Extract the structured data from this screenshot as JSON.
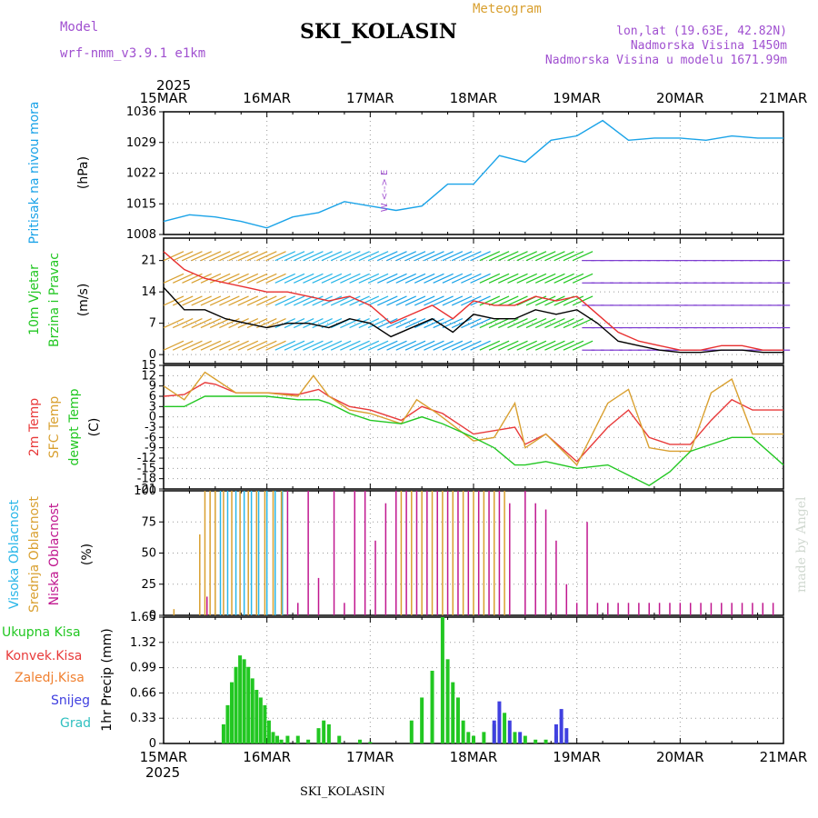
{
  "header": {
    "model_label": "Model",
    "model_value": "wrf-nmm_v3.9.1 e1km",
    "title": "SKI_KOLASIN",
    "chart_title": "Meteogram",
    "lonlat": "lon,lat (19.63E, 42.82N)",
    "elev": "Nadmorska Visina 1450m",
    "elev_model": "Nadmorska Visina u modelu 1671.99m",
    "year_top": "2025",
    "year_bottom": "2025",
    "footer_name": "SKI_KOLASIN",
    "credit": "made by Angel"
  },
  "colors": {
    "pressure": "#1aa3e8",
    "wind_speed": "#000000",
    "wind_gust": "#e83030",
    "t2m": "#e83a3a",
    "sfc": "#d9a030",
    "dew": "#22c722",
    "high_cloud": "#29b6e8",
    "mid_cloud": "#d9a030",
    "low_cloud": "#c0178f",
    "total_precip": "#22c722",
    "conv_precip": "#e83a3a",
    "frz_precip": "#f08030",
    "snow": "#4040e0",
    "grad": "#30c0c0",
    "label_purple": "#a050d0",
    "credit": "#d0d8d0"
  },
  "time_axis": {
    "labels": [
      "15MAR",
      "16MAR",
      "17MAR",
      "18MAR",
      "19MAR",
      "20MAR",
      "21MAR"
    ]
  },
  "chart_data": [
    {
      "type": "line",
      "panel": "pressure",
      "ylabel": [
        "Pritisak na nivou mora",
        "(hPa)"
      ],
      "yticks": [
        1008,
        1015,
        1022,
        1029,
        1036
      ],
      "ylim": [
        1008,
        1036
      ],
      "series": [
        {
          "x": [
            0,
            0.25,
            0.5,
            0.75,
            1.0,
            1.25,
            1.5,
            1.75,
            2.0,
            2.25,
            2.5,
            2.75,
            3.0,
            3.25,
            3.5,
            3.75,
            4.0,
            4.25,
            4.5,
            4.75,
            5.0,
            5.25,
            5.5,
            5.75,
            6.0
          ],
          "values": [
            1011,
            1012.5,
            1012,
            1011,
            1009.5,
            1012,
            1013,
            1015.5,
            1014.5,
            1013.5,
            1014.5,
            1019.5,
            1019.5,
            1026,
            1024.5,
            1029.5,
            1030.5,
            1034,
            1029.5,
            1030,
            1030,
            1029.5,
            1030.5,
            1030,
            1030
          ]
        }
      ]
    },
    {
      "type": "line",
      "panel": "wind",
      "ylabel": [
        "10m Vjetar",
        "Brzina i Pravac",
        "(m/s)"
      ],
      "yticks": [
        0,
        7,
        14,
        21
      ],
      "ylim": [
        -2,
        26
      ],
      "series": [
        {
          "x": [
            0,
            0.2,
            0.4,
            0.6,
            0.8,
            1.0,
            1.2,
            1.4,
            1.6,
            1.8,
            2.0,
            2.2,
            2.4,
            2.6,
            2.8,
            3.0,
            3.2,
            3.4,
            3.6,
            3.8,
            4.0,
            4.2,
            4.4,
            4.6,
            4.8,
            5.0,
            5.2,
            5.4,
            5.6,
            5.8,
            6.0
          ],
          "values": [
            15,
            10,
            10,
            8,
            7,
            6,
            7,
            7,
            6,
            8,
            7,
            4,
            6,
            8,
            5,
            9,
            8,
            8,
            10,
            9,
            10,
            7,
            3,
            2,
            1,
            0.5,
            0.5,
            1,
            1,
            0.5,
            0.5
          ]
        },
        {
          "x": [
            0,
            0.2,
            0.4,
            0.6,
            0.8,
            1.0,
            1.2,
            1.4,
            1.6,
            1.8,
            2.0,
            2.2,
            2.4,
            2.6,
            2.8,
            3.0,
            3.2,
            3.4,
            3.6,
            3.8,
            4.0,
            4.2,
            4.4,
            4.6,
            4.8,
            5.0,
            5.2,
            5.4,
            5.6,
            5.8,
            6.0
          ],
          "values": [
            23,
            19,
            17,
            16,
            15,
            14,
            14,
            13,
            12,
            13,
            11,
            7,
            9,
            11,
            8,
            12,
            11,
            11,
            13,
            12,
            13,
            9,
            5,
            3,
            2,
            1,
            1,
            2,
            2,
            1,
            1
          ]
        }
      ]
    },
    {
      "type": "line",
      "panel": "temperature",
      "ylabel": [
        "2m Temp",
        "SFC Temp",
        "dewpt Temp",
        "(C)"
      ],
      "yticks": [
        -21,
        -18,
        -15,
        -12,
        -9,
        -6,
        -3,
        0,
        3,
        6,
        9,
        12,
        15
      ],
      "ylim": [
        -21,
        15
      ],
      "series": [
        {
          "name": "2m Temp",
          "x": [
            0,
            0.2,
            0.4,
            0.5,
            0.7,
            1.0,
            1.3,
            1.5,
            1.6,
            1.8,
            2.0,
            2.3,
            2.5,
            2.7,
            3.0,
            3.2,
            3.4,
            3.5,
            3.7,
            4.0,
            4.3,
            4.5,
            4.7,
            4.9,
            5.1,
            5.3,
            5.5,
            5.7,
            6.0
          ],
          "values": [
            6,
            6.5,
            10,
            9.5,
            7,
            7,
            6.5,
            8,
            6,
            3,
            2,
            -1,
            3,
            1,
            -5,
            -4,
            -3,
            -8,
            -5,
            -13,
            -3,
            2,
            -6,
            -8,
            -8,
            -1,
            5,
            2,
            2
          ]
        },
        {
          "name": "SFC Temp",
          "x": [
            0,
            0.2,
            0.4,
            0.5,
            0.7,
            1.0,
            1.3,
            1.45,
            1.6,
            1.8,
            2.0,
            2.3,
            2.45,
            2.65,
            3.0,
            3.2,
            3.4,
            3.5,
            3.7,
            4.0,
            4.3,
            4.5,
            4.7,
            4.9,
            5.1,
            5.3,
            5.5,
            5.7,
            6.0
          ],
          "values": [
            9,
            5,
            13,
            11,
            7,
            7,
            6,
            12,
            6,
            2,
            1,
            -2,
            5,
            1,
            -7,
            -6,
            4,
            -9,
            -5,
            -14,
            4,
            8,
            -9,
            -10,
            -10,
            7,
            11,
            -5,
            -5
          ]
        },
        {
          "name": "dewpt Temp",
          "x": [
            0,
            0.2,
            0.4,
            0.5,
            0.7,
            1.0,
            1.3,
            1.5,
            1.6,
            1.8,
            2.0,
            2.3,
            2.5,
            2.7,
            3.0,
            3.2,
            3.4,
            3.5,
            3.7,
            4.0,
            4.3,
            4.5,
            4.7,
            4.9,
            5.1,
            5.3,
            5.5,
            5.7,
            6.0
          ],
          "values": [
            3,
            3,
            6,
            6,
            6,
            6,
            5,
            5,
            4,
            1,
            -1,
            -2,
            0,
            -2,
            -6,
            -9,
            -14,
            -14,
            -13,
            -15,
            -14,
            -17,
            -20,
            -16,
            -10,
            -8,
            -6,
            -6,
            -14
          ]
        }
      ]
    },
    {
      "type": "bar",
      "panel": "cloud",
      "ylabel": [
        "Visoka Oblacnost",
        "Srednja Oblacnost",
        "Niska Oblacnost",
        "(%)"
      ],
      "yticks": [
        0,
        25,
        50,
        75,
        100
      ],
      "ylim": [
        0,
        100
      ],
      "series": [
        {
          "name": "Visoka Oblacnost",
          "x": [
            0.55,
            0.62,
            0.7,
            0.78,
            0.85,
            0.92,
            1.0,
            1.08,
            1.15
          ],
          "values": [
            100,
            100,
            100,
            100,
            100,
            100,
            100,
            100,
            100
          ]
        },
        {
          "name": "Srednja Oblacnost",
          "x": [
            0.1,
            0.35,
            0.4,
            0.45,
            0.5,
            0.58,
            0.66,
            0.74,
            0.82,
            0.9,
            0.98,
            1.06,
            1.14,
            2.3,
            2.4,
            2.5,
            2.6,
            2.7,
            2.8,
            2.9,
            3.0,
            3.1,
            3.2,
            3.3
          ],
          "values": [
            5,
            65,
            100,
            100,
            100,
            100,
            100,
            100,
            100,
            100,
            100,
            100,
            100,
            100,
            100,
            100,
            100,
            100,
            100,
            100,
            100,
            100,
            100,
            100
          ]
        },
        {
          "name": "Niska Oblacnost",
          "x": [
            0.42,
            1.2,
            1.3,
            1.4,
            1.5,
            1.65,
            1.75,
            1.85,
            1.95,
            2.05,
            2.15,
            2.25,
            2.35,
            2.45,
            2.55,
            2.65,
            2.75,
            2.85,
            2.95,
            3.05,
            3.15,
            3.25,
            3.35,
            3.5,
            3.6,
            3.7,
            3.8,
            3.9,
            4.0,
            4.1,
            4.2,
            4.3,
            4.4,
            4.5,
            4.6,
            4.7,
            4.8,
            4.9,
            5.0,
            5.1,
            5.2,
            5.3,
            5.4,
            5.5,
            5.6,
            5.7,
            5.8,
            5.9
          ],
          "values": [
            15,
            100,
            10,
            100,
            30,
            100,
            10,
            100,
            100,
            60,
            90,
            100,
            100,
            100,
            100,
            100,
            100,
            100,
            100,
            100,
            100,
            100,
            90,
            100,
            90,
            85,
            60,
            25,
            10,
            75,
            10,
            10,
            10,
            10,
            10,
            10,
            10,
            10,
            10,
            10,
            10,
            10,
            10,
            10,
            10,
            10,
            10,
            10
          ]
        }
      ]
    },
    {
      "type": "bar",
      "panel": "precip",
      "ylabel": [
        "Ukupna Kisa",
        "Konvek.Kisa",
        "Zaledj.Kisa",
        "Snijeg",
        "Grad",
        "1hr Precip (mm)"
      ],
      "yticks": [
        0,
        0.33,
        0.66,
        0.99,
        1.32,
        1.65
      ],
      "ylim": [
        0,
        1.65
      ],
      "series": [
        {
          "name": "Ukupna Kisa",
          "x": [
            0.58,
            0.62,
            0.66,
            0.7,
            0.74,
            0.78,
            0.82,
            0.86,
            0.9,
            0.94,
            0.98,
            1.02,
            1.06,
            1.1,
            1.14,
            1.2,
            1.3,
            1.4,
            1.5,
            1.55,
            1.6,
            1.7,
            1.9,
            2.0,
            2.4,
            2.5,
            2.6,
            2.7,
            2.75,
            2.8,
            2.85,
            2.9,
            2.95,
            3.0,
            3.1,
            3.2,
            3.3,
            3.4,
            3.5,
            3.6,
            3.7,
            3.8,
            3.9
          ],
          "values": [
            0.25,
            0.5,
            0.8,
            1.0,
            1.15,
            1.1,
            1.0,
            0.85,
            0.7,
            0.6,
            0.5,
            0.3,
            0.15,
            0.1,
            0.05,
            0.1,
            0.1,
            0.05,
            0.2,
            0.3,
            0.25,
            0.1,
            0.05,
            0.02,
            0.3,
            0.6,
            0.95,
            1.65,
            1.1,
            0.8,
            0.6,
            0.3,
            0.15,
            0.1,
            0.15,
            0.25,
            0.4,
            0.15,
            0.1,
            0.05,
            0.05,
            0.1,
            0.05
          ]
        },
        {
          "name": "Snijeg",
          "x": [
            3.2,
            3.25,
            3.35,
            3.45,
            3.8,
            3.85,
            3.9
          ],
          "values": [
            0.3,
            0.55,
            0.3,
            0.15,
            0.25,
            0.45,
            0.2
          ]
        }
      ]
    }
  ]
}
